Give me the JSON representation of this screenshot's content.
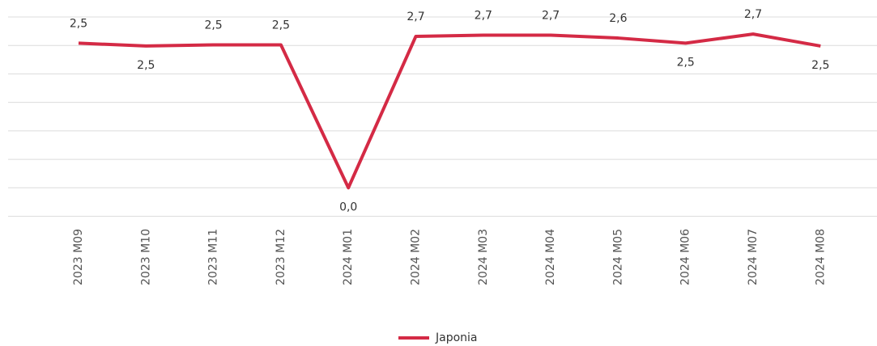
{
  "chart_data": {
    "type": "line",
    "categories": [
      "2023 M09",
      "2023 M10",
      "2023 M11",
      "2023 M12",
      "2024 M01",
      "2024 M02",
      "2024 M03",
      "2024 M04",
      "2024 M05",
      "2024 M06",
      "2024 M07",
      "2024 M08"
    ],
    "series": [
      {
        "name": "Japonia",
        "color": "#d42a45",
        "values": [
          2.54,
          2.49,
          2.51,
          2.51,
          0.0,
          2.66,
          2.68,
          2.68,
          2.63,
          2.54,
          2.7,
          2.49
        ],
        "value_labels": [
          "2,5",
          "2,5",
          "2,5",
          "2,5",
          "0,0",
          "2,7",
          "2,7",
          "2,7",
          "2,6",
          "2,5",
          "2,7",
          "2,5"
        ]
      }
    ],
    "ylim": [
      -0.5,
      3.0
    ],
    "yticks": [
      -0.5,
      0,
      0.5,
      1,
      1.5,
      2,
      2.5,
      3
    ],
    "grid": true,
    "legend": "bottom"
  }
}
